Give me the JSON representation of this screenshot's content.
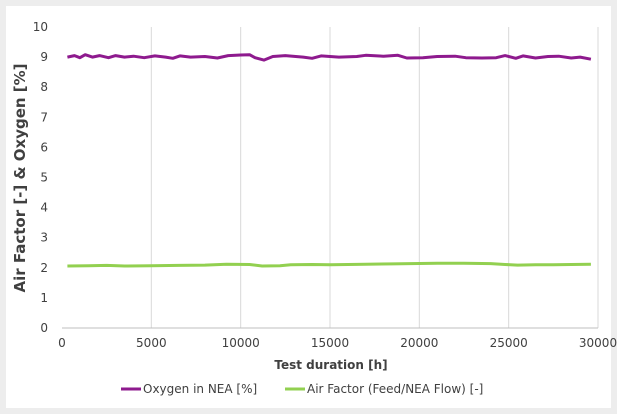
{
  "chart_data": {
    "type": "line",
    "title": "",
    "xlabel": "Test duration [h]",
    "ylabel": "Air Factor [-]  &  Oxygen [%]",
    "xlim": [
      0,
      30000
    ],
    "ylim": [
      0,
      10
    ],
    "x_ticks": [
      "0",
      "5000",
      "10000",
      "15000",
      "20000",
      "25000",
      "30000"
    ],
    "y_ticks": [
      "0",
      "1",
      "2",
      "3",
      "4",
      "5",
      "6",
      "7",
      "8",
      "9",
      "10"
    ],
    "grid": "vertical",
    "legend_position": "bottom",
    "series": [
      {
        "name": "Oxygen in NEA [%]",
        "color": "#8e1a8e",
        "points": [
          [
            300,
            9.0
          ],
          [
            700,
            9.05
          ],
          [
            1000,
            8.98
          ],
          [
            1300,
            9.08
          ],
          [
            1700,
            9.0
          ],
          [
            2100,
            9.05
          ],
          [
            2600,
            8.98
          ],
          [
            3000,
            9.05
          ],
          [
            3500,
            9.0
          ],
          [
            4000,
            9.03
          ],
          [
            4600,
            8.98
          ],
          [
            5200,
            9.04
          ],
          [
            5800,
            9.0
          ],
          [
            6200,
            8.96
          ],
          [
            6600,
            9.04
          ],
          [
            7200,
            9.0
          ],
          [
            8000,
            9.02
          ],
          [
            8700,
            8.97
          ],
          [
            9300,
            9.05
          ],
          [
            10000,
            9.07
          ],
          [
            10500,
            9.08
          ],
          [
            10800,
            8.98
          ],
          [
            11300,
            8.9
          ],
          [
            11800,
            9.02
          ],
          [
            12500,
            9.05
          ],
          [
            13500,
            9.0
          ],
          [
            14000,
            8.96
          ],
          [
            14500,
            9.04
          ],
          [
            15500,
            9.0
          ],
          [
            16500,
            9.02
          ],
          [
            17000,
            9.06
          ],
          [
            18000,
            9.03
          ],
          [
            18800,
            9.06
          ],
          [
            19300,
            8.97
          ],
          [
            20200,
            8.98
          ],
          [
            21000,
            9.02
          ],
          [
            22000,
            9.03
          ],
          [
            22600,
            8.98
          ],
          [
            23500,
            8.97
          ],
          [
            24300,
            8.98
          ],
          [
            24800,
            9.05
          ],
          [
            25400,
            8.96
          ],
          [
            25800,
            9.04
          ],
          [
            26500,
            8.97
          ],
          [
            27200,
            9.02
          ],
          [
            27800,
            9.03
          ],
          [
            28500,
            8.97
          ],
          [
            29000,
            9.0
          ],
          [
            29600,
            8.93
          ]
        ]
      },
      {
        "name": "Air Factor (Feed/NEA Flow) [-]",
        "color": "#92d050",
        "points": [
          [
            300,
            2.06
          ],
          [
            1500,
            2.07
          ],
          [
            2500,
            2.08
          ],
          [
            3500,
            2.06
          ],
          [
            5000,
            2.07
          ],
          [
            6500,
            2.08
          ],
          [
            8000,
            2.09
          ],
          [
            9200,
            2.12
          ],
          [
            10500,
            2.11
          ],
          [
            11200,
            2.06
          ],
          [
            12200,
            2.07
          ],
          [
            12800,
            2.1
          ],
          [
            14000,
            2.11
          ],
          [
            15000,
            2.1
          ],
          [
            16000,
            2.11
          ],
          [
            17000,
            2.12
          ],
          [
            18500,
            2.13
          ],
          [
            19500,
            2.14
          ],
          [
            21000,
            2.15
          ],
          [
            22500,
            2.15
          ],
          [
            24000,
            2.14
          ],
          [
            24800,
            2.11
          ],
          [
            25500,
            2.09
          ],
          [
            26500,
            2.1
          ],
          [
            27500,
            2.1
          ],
          [
            28500,
            2.11
          ],
          [
            29600,
            2.12
          ]
        ]
      }
    ]
  }
}
